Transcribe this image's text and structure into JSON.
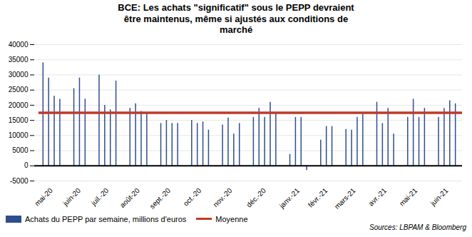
{
  "chart_data": {
    "type": "bar",
    "title": "BCE: Les achats \"significatif\" sous le PEPP devraient\nêtre maintenus, même si ajustés aux conditions de\nmarché",
    "categories": [
      "mai-20",
      "juin-20",
      "juil.-20",
      "août-20",
      "sept.-20",
      "oct.-20",
      "nov.-20",
      "déc.-20",
      "janv.-21",
      "févr.-21",
      "mars-21",
      "avr.-21",
      "mai-21",
      "juin-21"
    ],
    "series": [
      {
        "name": "Achats du PEPP par semaine, millions d'euros",
        "type": "bar",
        "color": "#2e4d8e",
        "values": [
          [
            34000,
            29000,
            23000,
            22000
          ],
          [
            25500,
            29000,
            22000
          ],
          [
            30000,
            20000,
            18500,
            28000
          ],
          [
            19000,
            20500,
            18000,
            17500
          ],
          [
            14000,
            15000,
            14000,
            14000
          ],
          [
            15000,
            14000,
            14500,
            11800
          ],
          [
            13500,
            15800,
            10500,
            14000
          ],
          [
            16000,
            19000,
            16000,
            21000,
            17500
          ],
          [
            3800,
            16000,
            16000,
            -1500
          ],
          [
            8500,
            13000,
            13000
          ],
          [
            12000,
            11800,
            16000,
            17000
          ],
          [
            21000,
            14000,
            19000,
            10500
          ],
          [
            16000,
            22000,
            16000,
            19000
          ],
          [
            16000,
            19000,
            21500,
            20500
          ]
        ]
      },
      {
        "name": "Moyenne",
        "type": "line",
        "color": "#c0392b",
        "value": 17500
      }
    ],
    "ylim": [
      -5000,
      40000
    ],
    "yticks": [
      -5000,
      0,
      5000,
      10000,
      15000,
      20000,
      25000,
      30000,
      35000,
      40000
    ],
    "grid": true,
    "legend": "bottom",
    "source": "Sources: LBPAM & Bloomberg"
  }
}
